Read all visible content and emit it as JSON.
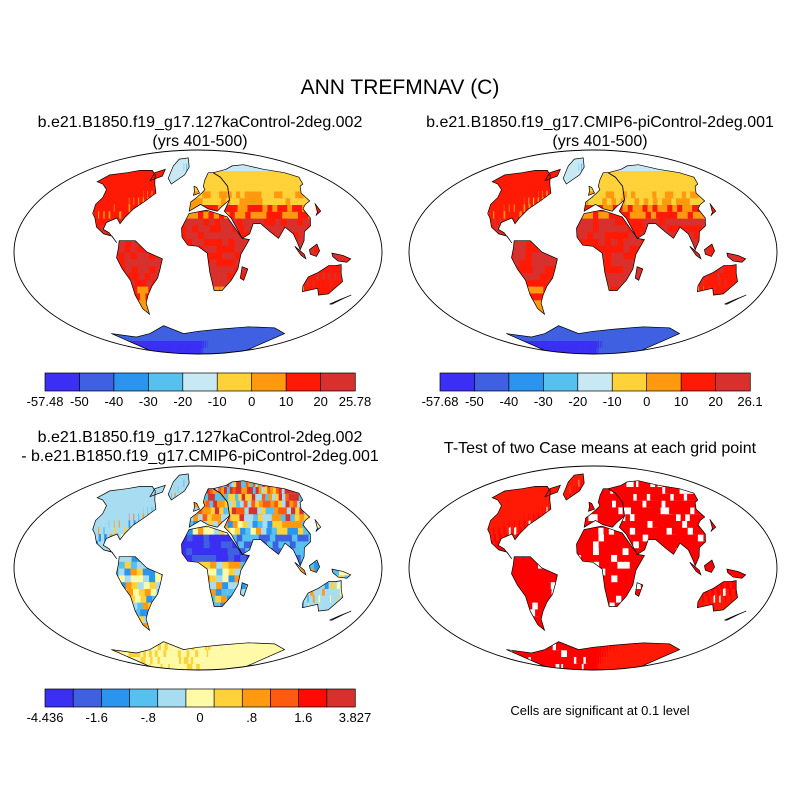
{
  "main_title": "ANN TREFMNAV (C)",
  "panels": [
    {
      "line1": "b.e21.B1850.f19_g17.127kaControl-2deg.002",
      "line2": "(yrs 401-500)",
      "colorbar": {
        "labels": [
          "-57.48",
          "-50",
          "-40",
          "-30",
          "-20",
          "-10",
          "0",
          "10",
          "20",
          "25.78"
        ],
        "colors": [
          "#3a2ff2",
          "#3f60e0",
          "#2b94ee",
          "#56c0ee",
          "#c8e9f4",
          "#ffd23a",
          "#ff9a10",
          "#ff1a06",
          "#d8302c"
        ]
      }
    },
    {
      "line1": "b.e21.B1850.f19_g17.CMIP6-piControl-2deg.001",
      "line2": "(yrs 401-500)",
      "colorbar": {
        "labels": [
          "-57.68",
          "-50",
          "-40",
          "-30",
          "-20",
          "-10",
          "0",
          "10",
          "20",
          "26.1"
        ],
        "colors": [
          "#3a2ff2",
          "#3f60e0",
          "#2b94ee",
          "#56c0ee",
          "#c8e9f4",
          "#ffd23a",
          "#ff9a10",
          "#ff1a06",
          "#d8302c"
        ]
      }
    },
    {
      "line1": "b.e21.B1850.f19_g17.127kaControl-2deg.002",
      "line2": "- b.e21.B1850.f19_g17.CMIP6-piControl-2deg.001",
      "colorbar": {
        "labels": [
          "-4.436",
          "-1.6",
          "-.8",
          "0",
          ".8",
          "1.6",
          "3.827"
        ],
        "colors": [
          "#3a2ff2",
          "#3f60e0",
          "#2b94ee",
          "#56c0ee",
          "#a8dcf0",
          "#fffaa8",
          "#ffd23a",
          "#ff9a10",
          "#ff5a10",
          "#ff0a04",
          "#d8302c"
        ]
      }
    },
    {
      "line1": "T-Test of two Case means at each grid point",
      "note": "Cells are significant at 0.1 level"
    }
  ]
}
